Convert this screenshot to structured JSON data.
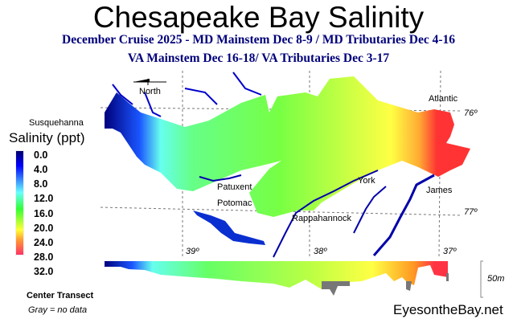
{
  "title": "Chesapeake Bay Salinity",
  "subtitle_line1": "December Cruise 2025 - MD Mainstem Dec 8-9 / MD Tributaries Dec 4-16",
  "subtitle_line2": "VA Mainstem Dec 16-18/  VA Tributaries Dec 3-17",
  "legend": {
    "title": "Salinity (ppt)",
    "ticks": [
      "0.0",
      "4.0",
      "8.0",
      "12.0",
      "16.0",
      "20.0",
      "24.0",
      "28.0",
      "32.0"
    ],
    "colors": [
      "#00006e",
      "#0000ff",
      "#3a8cff",
      "#66ffff",
      "#33ff33",
      "#99ff33",
      "#ffff33",
      "#ff9933",
      "#ff3366"
    ]
  },
  "map": {
    "north_label": "North",
    "places": {
      "susquehanna": "Susquehanna",
      "patuxent": "Patuxent",
      "potomac": "Potomac",
      "rappahannock": "Rappahannock",
      "york": "York",
      "james": "James",
      "atlantic": "Atlantic"
    },
    "gridlabels": {
      "lat39": "39º",
      "lat38": "38º",
      "lat37": "37º",
      "lon76": "76º",
      "lon77": "77º"
    }
  },
  "transect": {
    "label": "Center Transect",
    "scale_label": "50m"
  },
  "gray_note": "Gray = no data",
  "site": "EyesontheBay.net"
}
